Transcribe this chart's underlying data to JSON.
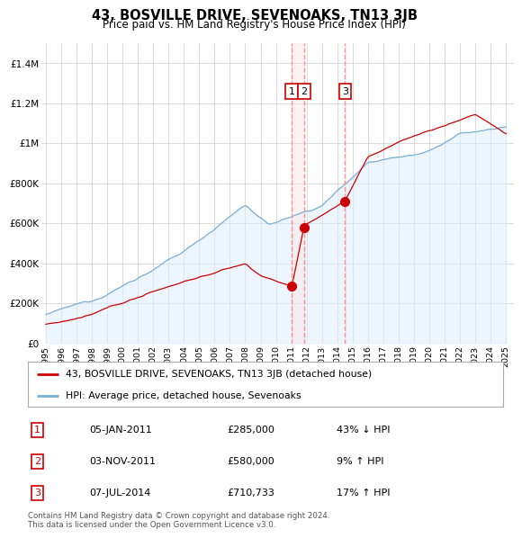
{
  "title": "43, BOSVILLE DRIVE, SEVENOAKS, TN13 3JB",
  "subtitle": "Price paid vs. HM Land Registry's House Price Index (HPI)",
  "ylim": [
    0,
    1500000
  ],
  "yticks": [
    0,
    200000,
    400000,
    600000,
    800000,
    1000000,
    1200000,
    1400000
  ],
  "ytick_labels": [
    "£0",
    "£200K",
    "£400K",
    "£600K",
    "£800K",
    "£1M",
    "£1.2M",
    "£1.4M"
  ],
  "hpi_color": "#7bafd4",
  "hpi_fill_color": "#ddeeff",
  "price_color": "#cc0000",
  "vline_color": "#ff8888",
  "vfill_color": "#ffe0e0",
  "transactions": [
    {
      "date": 2011.04,
      "price": 285000,
      "label": "1"
    },
    {
      "date": 2011.84,
      "price": 580000,
      "label": "2"
    },
    {
      "date": 2014.51,
      "price": 710733,
      "label": "3"
    }
  ],
  "legend_price_label": "43, BOSVILLE DRIVE, SEVENOAKS, TN13 3JB (detached house)",
  "legend_hpi_label": "HPI: Average price, detached house, Sevenoaks",
  "table_rows": [
    {
      "num": "1",
      "date": "05-JAN-2011",
      "price": "£285,000",
      "pct": "43% ↓ HPI"
    },
    {
      "num": "2",
      "date": "03-NOV-2011",
      "price": "£580,000",
      "pct": "9% ↑ HPI"
    },
    {
      "num": "3",
      "date": "07-JUL-2014",
      "price": "£710,733",
      "pct": "17% ↑ HPI"
    }
  ],
  "footer": "Contains HM Land Registry data © Crown copyright and database right 2024.\nThis data is licensed under the Open Government Licence v3.0.",
  "bg_color": "#ffffff",
  "grid_color": "#cccccc",
  "xlim_start": 1994.7,
  "xlim_end": 2025.5
}
